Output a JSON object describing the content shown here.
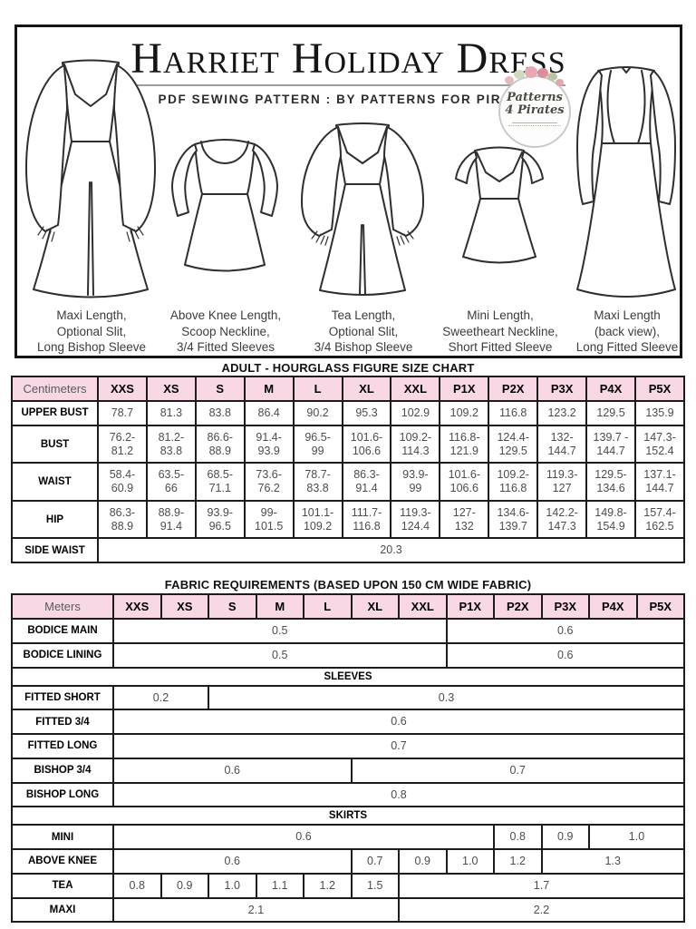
{
  "header": {
    "title": "Harriet Holiday Dress",
    "subtitle": "PDF SEWING PATTERN : BY PATTERNS FOR PIRATES",
    "logo": {
      "line1": "Patterns",
      "line2": "4 Pirates"
    }
  },
  "dresses": [
    {
      "name": "maxi-front-bishop",
      "caption": "Maxi Length,\nOptional Slit,\nLong Bishop Sleeve"
    },
    {
      "name": "above-knee-scoop",
      "caption": "Above Knee Length,\nScoop Neckline,\n3/4 Fitted Sleeves"
    },
    {
      "name": "tea-length-bishop",
      "caption": "Tea Length,\nOptional Slit,\n3/4 Bishop Sleeve"
    },
    {
      "name": "mini-sweetheart",
      "caption": "Mini Length,\nSweetheart Neckline,\nShort Fitted Sleeve"
    },
    {
      "name": "maxi-back-fitted",
      "caption": "Maxi Length\n(back view),\nLong Fitted Sleeve"
    }
  ],
  "size_chart": {
    "title": "ADULT - HOURGLASS FIGURE SIZE CHART",
    "unit_label": "Centimeters",
    "sizes": [
      "XXS",
      "XS",
      "S",
      "M",
      "L",
      "XL",
      "XXL",
      "P1X",
      "P2X",
      "P3X",
      "P4X",
      "P5X"
    ],
    "rows": [
      {
        "label": "UPPER BUST",
        "values": [
          "78.7",
          "81.3",
          "83.8",
          "86.4",
          "90.2",
          "95.3",
          "102.9",
          "109.2",
          "116.8",
          "123.2",
          "129.5",
          "135.9"
        ]
      },
      {
        "label": "BUST",
        "values": [
          "76.2-\n81.2",
          "81.2-\n83.8",
          "86.6-\n88.9",
          "91.4-\n93.9",
          "96.5-\n99",
          "101.6-\n106.6",
          "109.2-\n114.3",
          "116.8-\n121.9",
          "124.4-\n129.5",
          "132-\n144.7",
          "139.7 -\n144.7",
          "147.3-\n152.4"
        ]
      },
      {
        "label": "WAIST",
        "values": [
          "58.4-\n60.9",
          "63.5-\n66",
          "68.5-\n71.1",
          "73.6-\n76.2",
          "78.7-\n83.8",
          "86.3-\n91.4",
          "93.9-\n99",
          "101.6-\n106.6",
          "109.2-\n116.8",
          "119.3-\n127",
          "129.5-\n134.6",
          "137.1-\n144.7"
        ]
      },
      {
        "label": "HIP",
        "values": [
          "86.3-\n88.9",
          "88.9-\n91.4",
          "93.9-\n96.5",
          "99-\n101.5",
          "101.1-\n109.2",
          "111.7-\n116.8",
          "119.3-\n124.4",
          "127-\n132",
          "134.6-\n139.7",
          "142.2-\n147.3",
          "149.8-\n154.9",
          "157.4-\n162.5"
        ]
      },
      {
        "label": "SIDE WAIST",
        "values": [
          "20.3"
        ],
        "colspan": 12
      }
    ]
  },
  "fabric_chart": {
    "title": "FABRIC REQUIREMENTS (BASED UPON 150 CM WIDE FABRIC)",
    "unit_label": "Meters",
    "sizes": [
      "XXS",
      "XS",
      "S",
      "M",
      "L",
      "XL",
      "XXL",
      "P1X",
      "P2X",
      "P3X",
      "P4X",
      "P5X"
    ],
    "rows": [
      {
        "label": "BODICE MAIN",
        "cells": [
          {
            "v": "0.5",
            "s": 7
          },
          {
            "v": "0.6",
            "s": 5
          }
        ]
      },
      {
        "label": "BODICE LINING",
        "cells": [
          {
            "v": "0.5",
            "s": 7
          },
          {
            "v": "0.6",
            "s": 5
          }
        ]
      },
      {
        "section": "SLEEVES"
      },
      {
        "label": "FITTED SHORT",
        "cells": [
          {
            "v": "0.2",
            "s": 2
          },
          {
            "v": "0.3",
            "s": 10
          }
        ]
      },
      {
        "label": "FITTED 3/4",
        "cells": [
          {
            "v": "0.6",
            "s": 12
          }
        ]
      },
      {
        "label": "FITTED LONG",
        "cells": [
          {
            "v": "0.7",
            "s": 12
          }
        ]
      },
      {
        "label": "BISHOP 3/4",
        "cells": [
          {
            "v": "0.6",
            "s": 5
          },
          {
            "v": "0.7",
            "s": 7
          }
        ]
      },
      {
        "label": "BISHOP LONG",
        "cells": [
          {
            "v": "0.8",
            "s": 12
          }
        ]
      },
      {
        "section": "SKIRTS"
      },
      {
        "label": "MINI",
        "cells": [
          {
            "v": "0.6",
            "s": 8
          },
          {
            "v": "0.8",
            "s": 1
          },
          {
            "v": "0.9",
            "s": 1
          },
          {
            "v": "1.0",
            "s": 2
          }
        ]
      },
      {
        "label": "ABOVE KNEE",
        "cells": [
          {
            "v": "0.6",
            "s": 5
          },
          {
            "v": "0.7",
            "s": 1
          },
          {
            "v": "0.9",
            "s": 1
          },
          {
            "v": "1.0",
            "s": 1
          },
          {
            "v": "1.2",
            "s": 1
          },
          {
            "v": "1.3",
            "s": 3
          }
        ]
      },
      {
        "label": "TEA",
        "cells": [
          {
            "v": "0.8",
            "s": 1
          },
          {
            "v": "0.9",
            "s": 1
          },
          {
            "v": "1.0",
            "s": 1
          },
          {
            "v": "1.1",
            "s": 1
          },
          {
            "v": "1.2",
            "s": 1
          },
          {
            "v": "1.5",
            "s": 1
          },
          {
            "v": "1.7",
            "s": 6
          }
        ]
      },
      {
        "label": "MAXI",
        "cells": [
          {
            "v": "2.1",
            "s": 6
          },
          {
            "v": "2.2",
            "s": 6
          }
        ]
      }
    ]
  },
  "colors": {
    "header_pink": "#f8d8e4",
    "table_border": "#1c1c1c",
    "value_text": "#4c4c4c",
    "title_underline": "#9c9c9c"
  }
}
